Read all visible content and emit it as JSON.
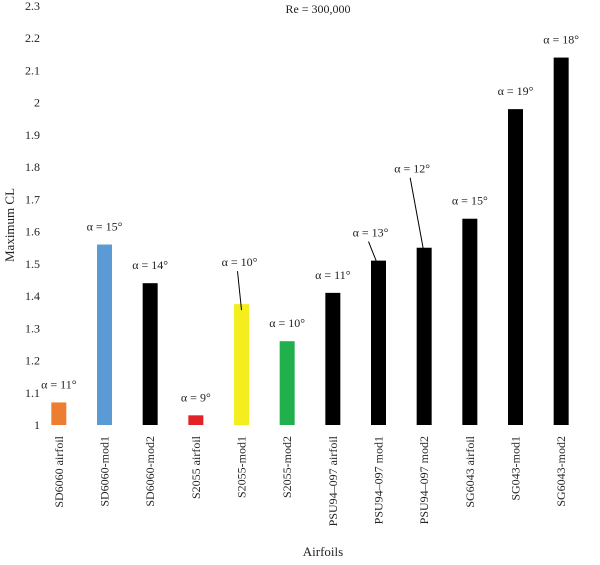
{
  "chart_data": {
    "type": "bar",
    "title": "Re = 300,000",
    "xlabel": "Airfoils",
    "ylabel": "Maximum CL",
    "ylim": [
      1,
      2.3
    ],
    "yticks": [
      1,
      1.1,
      1.2,
      1.3,
      1.4,
      1.5,
      1.6,
      1.7,
      1.8,
      1.9,
      2,
      2.1,
      2.2,
      2.3
    ],
    "ytick_labels": [
      "1",
      "1.1",
      "1.2",
      "1.3",
      "1.4",
      "1.5",
      "1.6",
      "1.7",
      "1.8",
      "1.9",
      "2",
      "2.1",
      "2.2",
      "2.3"
    ],
    "grid": false,
    "categories": [
      "SD6060 airfoil",
      "SD6060-mod1",
      "SD6060-mod2",
      "S2055 airfoil",
      "S2055-mod1",
      "S2055-mod2",
      "PSU94–097 airfoil",
      "PSU94–097 mod1",
      "PSU94–097 mod2",
      "SG6043 airfoil",
      "SG043-mod1",
      "SG6043-mod2"
    ],
    "values": [
      1.07,
      1.56,
      1.44,
      1.03,
      1.375,
      1.26,
      1.41,
      1.51,
      1.55,
      1.64,
      1.98,
      2.14
    ],
    "colors": [
      "#ED7D31",
      "#5B9BD5",
      "#000000",
      "#E32228",
      "#F5EE1E",
      "#20B14C",
      "#000000",
      "#000000",
      "#000000",
      "#000000",
      "#000000",
      "#000000"
    ],
    "annotations": [
      "α = 11°",
      "α = 15°",
      "α = 14°",
      "α = 9°",
      "α = 10°",
      "α = 10°",
      "α = 11°",
      "α = 13°",
      "α = 12°",
      "α = 15°",
      "α = 19°",
      "α = 18°"
    ]
  }
}
